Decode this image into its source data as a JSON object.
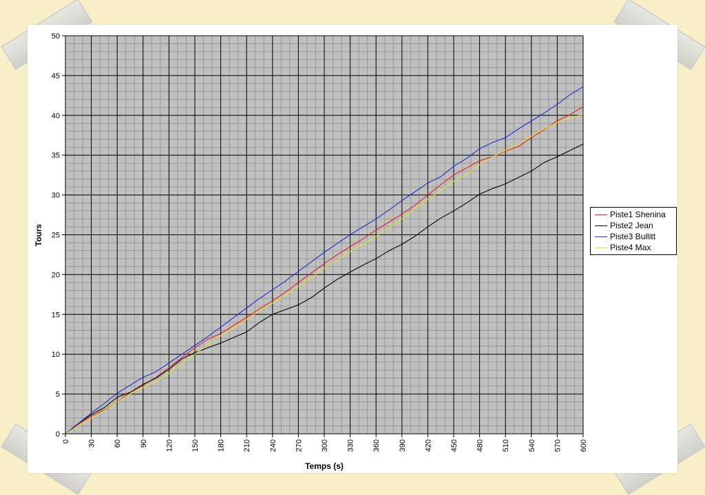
{
  "chart_data": {
    "type": "line",
    "title": "",
    "xlabel": "Temps (s)",
    "ylabel": "Tours",
    "xlim": [
      0,
      600
    ],
    "ylim": [
      0,
      50
    ],
    "xticks": [
      0,
      30,
      60,
      90,
      120,
      150,
      180,
      210,
      240,
      270,
      300,
      330,
      360,
      390,
      420,
      450,
      480,
      510,
      540,
      570,
      600
    ],
    "yticks": [
      0,
      5,
      10,
      15,
      20,
      25,
      30,
      35,
      40,
      45,
      50
    ],
    "grid": true,
    "legend_position": "right",
    "series": [
      {
        "name": "Piste1 Shenina",
        "color": "#e02020",
        "x": [
          0,
          15,
          30,
          45,
          60,
          75,
          90,
          105,
          120,
          135,
          150,
          165,
          180,
          195,
          210,
          225,
          240,
          255,
          270,
          285,
          300,
          315,
          330,
          345,
          360,
          375,
          390,
          405,
          420,
          435,
          450,
          465,
          480,
          495,
          510,
          525,
          540,
          555,
          570,
          585,
          600
        ],
        "y": [
          0,
          1.2,
          2.2,
          3,
          4,
          5.2,
          6.1,
          7.1,
          8.3,
          9.6,
          10.8,
          11.9,
          12.6,
          13.6,
          14.6,
          15.7,
          16.7,
          17.8,
          19,
          20.2,
          21.4,
          22.5,
          23.5,
          24.5,
          25.6,
          26.6,
          27.6,
          28.7,
          30,
          31.3,
          32.5,
          33.4,
          34.3,
          34.8,
          35.5,
          36.1,
          37.2,
          38.2,
          39.3,
          40.1,
          41.1
        ]
      },
      {
        "name": "Piste2 Jean",
        "color": "#000000",
        "x": [
          0,
          15,
          30,
          45,
          60,
          75,
          90,
          105,
          120,
          135,
          150,
          165,
          180,
          195,
          210,
          225,
          240,
          255,
          270,
          285,
          300,
          315,
          330,
          345,
          360,
          375,
          390,
          405,
          420,
          435,
          450,
          465,
          480,
          495,
          510,
          525,
          540,
          555,
          570,
          585,
          600
        ],
        "y": [
          0,
          1.3,
          2.4,
          3.3,
          4.6,
          5.2,
          6.2,
          7,
          8.1,
          9.4,
          10.2,
          10.8,
          11.4,
          12.1,
          12.8,
          14,
          15,
          15.6,
          16.2,
          17.1,
          18.3,
          19.4,
          20.3,
          21.2,
          22,
          23,
          23.8,
          24.8,
          26,
          27.1,
          28,
          29,
          30.1,
          30.8,
          31.4,
          32.2,
          33,
          34.1,
          34.8,
          35.6,
          36.4
        ]
      },
      {
        "name": "Piste3 Bullitt",
        "color": "#1a2ec8",
        "x": [
          0,
          15,
          30,
          45,
          60,
          75,
          90,
          105,
          120,
          135,
          150,
          165,
          180,
          195,
          210,
          225,
          240,
          255,
          270,
          285,
          300,
          315,
          330,
          345,
          360,
          375,
          390,
          405,
          420,
          435,
          450,
          465,
          480,
          495,
          510,
          525,
          540,
          555,
          570,
          585,
          600
        ],
        "y": [
          0,
          1.3,
          2.6,
          3.8,
          5.1,
          6.1,
          7.1,
          7.8,
          8.9,
          10,
          11.1,
          12.2,
          13.4,
          14.6,
          15.8,
          17,
          18.1,
          19.2,
          20.4,
          21.6,
          22.8,
          23.9,
          25,
          26,
          27,
          28.1,
          29.3,
          30.4,
          31.5,
          32.3,
          33.6,
          34.6,
          35.8,
          36.6,
          37.2,
          38.3,
          39.3,
          40.3,
          41.4,
          42.6,
          43.6
        ]
      },
      {
        "name": "Piste4 Max",
        "color": "#e8e020",
        "x": [
          0,
          15,
          30,
          45,
          60,
          75,
          90,
          105,
          120,
          135,
          150,
          165,
          180,
          195,
          210,
          225,
          240,
          255,
          270,
          285,
          300,
          315,
          330,
          345,
          360,
          375,
          390,
          405,
          420,
          435,
          450,
          465,
          480,
          495,
          510,
          525,
          540,
          555,
          570,
          585,
          600
        ],
        "y": [
          0,
          1,
          2,
          2.9,
          4,
          5,
          5.8,
          6.6,
          7.6,
          8.8,
          10,
          11.2,
          12.3,
          13.3,
          14.4,
          15.5,
          16.4,
          17.4,
          18.5,
          19.6,
          20.8,
          21.8,
          22.9,
          23.8,
          24.8,
          25.9,
          27,
          28.2,
          29.4,
          30.6,
          31.7,
          32.6,
          33.8,
          34.8,
          35.6,
          36.4,
          37.4,
          38.3,
          39.1,
          39.7,
          40.1
        ]
      }
    ]
  }
}
